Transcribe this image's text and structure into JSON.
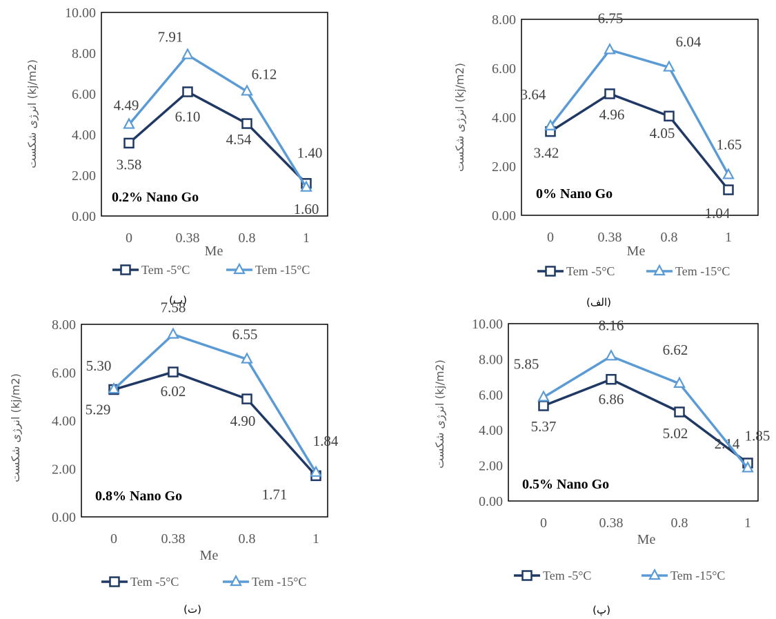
{
  "chart_data": [
    {
      "type": "line",
      "caption": "(ب)",
      "annotation": "0.2% Nano Go",
      "xlabel": "Me",
      "ylabel": "انرژی شکست (kj/m2)",
      "categories": [
        "0",
        "0.38",
        "0.8",
        "1"
      ],
      "ylim": [
        0,
        10
      ],
      "yticks": [
        "0.00",
        "2.00",
        "4.00",
        "6.00",
        "8.00",
        "10.00"
      ],
      "series": [
        {
          "name": "Tem -5°C",
          "values": [
            3.58,
            6.1,
            4.54,
            1.6
          ],
          "labels": [
            "3.58",
            "6.10",
            "4.54",
            "1.60"
          ]
        },
        {
          "name": "Tem -15°C",
          "values": [
            4.49,
            7.91,
            6.12,
            1.4
          ],
          "labels": [
            "4.49",
            "7.91",
            "6.12",
            "1.40"
          ]
        }
      ]
    },
    {
      "type": "line",
      "caption": "(الف)",
      "annotation": "0% Nano Go",
      "xlabel": "Me",
      "ylabel": "انرژی شکست (kj/m2)",
      "categories": [
        "0",
        "0.38",
        "0.8",
        "1"
      ],
      "ylim": [
        0,
        8
      ],
      "yticks": [
        "0.00",
        "2.00",
        "4.00",
        "6.00",
        "8.00"
      ],
      "series": [
        {
          "name": "Tem -5°C",
          "values": [
            3.42,
            4.96,
            4.05,
            1.04
          ],
          "labels": [
            "3.42",
            "4.96",
            "4.05",
            "1.04"
          ]
        },
        {
          "name": "Tem -15°C",
          "values": [
            3.64,
            6.75,
            6.04,
            1.65
          ],
          "labels": [
            "3.64",
            "6.75",
            "6.04",
            "1.65"
          ]
        }
      ]
    },
    {
      "type": "line",
      "caption": "(ت)",
      "annotation": "0.8% Nano Go",
      "xlabel": "Me",
      "ylabel": "انرژی شکست (kj/m2)",
      "categories": [
        "0",
        "0.38",
        "0.8",
        "1"
      ],
      "ylim": [
        0,
        8
      ],
      "yticks": [
        "0.00",
        "2.00",
        "4.00",
        "6.00",
        "8.00"
      ],
      "series": [
        {
          "name": "Tem -5°C",
          "values": [
            5.29,
            6.02,
            4.9,
            1.71
          ],
          "labels": [
            "5.29",
            "6.02",
            "4.90",
            "1.71"
          ]
        },
        {
          "name": "Tem -15°C",
          "values": [
            5.3,
            7.58,
            6.55,
            1.84
          ],
          "labels": [
            "5.30",
            "7.58",
            "6.55",
            "1.84"
          ]
        }
      ]
    },
    {
      "type": "line",
      "caption": "(پ)",
      "annotation": "0.5% Nano Go",
      "xlabel": "Me",
      "ylabel": "انرژی شکست (kj/m2)",
      "categories": [
        "0",
        "0.38",
        "0.8",
        "1"
      ],
      "ylim": [
        0,
        10
      ],
      "yticks": [
        "0.00",
        "2.00",
        "4.00",
        "6.00",
        "8.00",
        "10.00"
      ],
      "series": [
        {
          "name": "Tem -5°C",
          "values": [
            5.37,
            6.86,
            5.02,
            2.14
          ],
          "labels": [
            "5.37",
            "6.86",
            "5.02",
            "2.14"
          ]
        },
        {
          "name": "Tem -15°C",
          "values": [
            5.85,
            8.16,
            6.62,
            1.85
          ],
          "labels": [
            "5.85",
            "8.16",
            "6.62",
            "1.85"
          ]
        }
      ]
    }
  ],
  "style": {
    "series_colors": [
      "#1f3864",
      "#5b9bd5"
    ],
    "series_markers": [
      "square",
      "triangle"
    ]
  }
}
